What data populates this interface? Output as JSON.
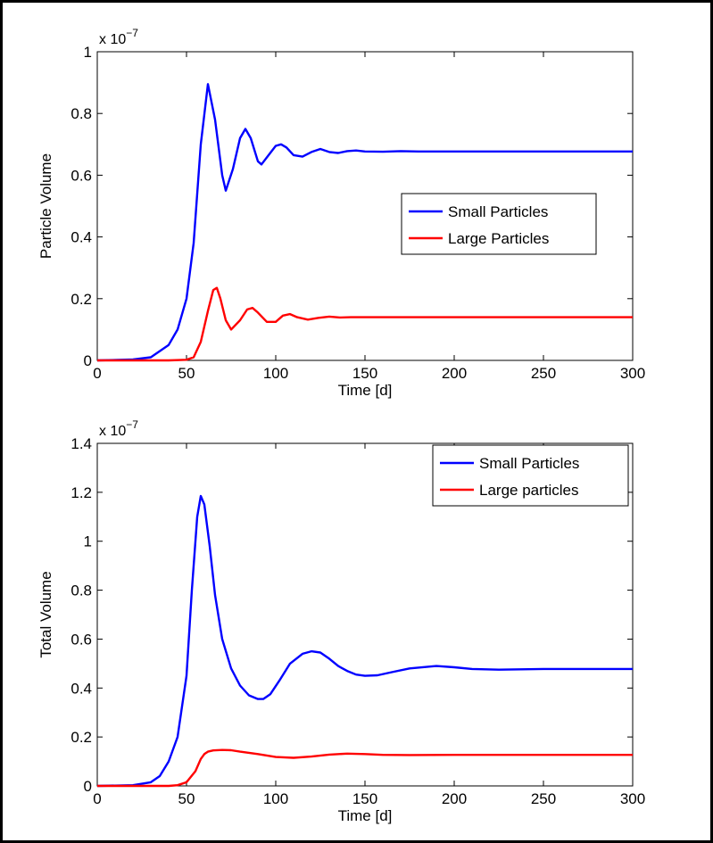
{
  "chart_data": [
    {
      "type": "line",
      "ylabel": "Particle Volume",
      "xlabel": "Time [d]",
      "exponent_base": "x 10",
      "exponent_power": "−7",
      "xlim": [
        0,
        300
      ],
      "ylim": [
        0,
        1
      ],
      "xticks": [
        0,
        50,
        100,
        150,
        200,
        250,
        300
      ],
      "xtick_labels": [
        "0",
        "50",
        "100",
        "150",
        "200",
        "250",
        "300"
      ],
      "yticks": [
        0,
        0.2,
        0.4,
        0.6,
        0.8,
        1
      ],
      "ytick_labels": [
        "0",
        "0.2",
        "0.4",
        "0.6",
        "0.8",
        "1"
      ],
      "grid": false,
      "legend_position": "right-middle",
      "series": [
        {
          "name": "Small Particles",
          "color": "#0000ff",
          "x": [
            0,
            20,
            30,
            40,
            45,
            50,
            54,
            58,
            62,
            66,
            70,
            72,
            76,
            80,
            83,
            86,
            90,
            92,
            96,
            100,
            103,
            106,
            110,
            115,
            120,
            125,
            130,
            135,
            140,
            145,
            150,
            160,
            170,
            180,
            200,
            250,
            300
          ],
          "y": [
            0,
            0.003,
            0.01,
            0.05,
            0.1,
            0.2,
            0.38,
            0.7,
            0.895,
            0.78,
            0.6,
            0.55,
            0.62,
            0.72,
            0.75,
            0.72,
            0.645,
            0.635,
            0.665,
            0.695,
            0.7,
            0.69,
            0.665,
            0.66,
            0.675,
            0.685,
            0.675,
            0.672,
            0.678,
            0.68,
            0.677,
            0.676,
            0.678,
            0.677,
            0.677,
            0.677,
            0.677
          ]
        },
        {
          "name": "Large Particles",
          "color": "#ff0000",
          "x": [
            0,
            40,
            50,
            54,
            58,
            62,
            65,
            67,
            69,
            72,
            75,
            80,
            84,
            87,
            90,
            95,
            100,
            104,
            108,
            112,
            118,
            124,
            130,
            136,
            142,
            150,
            160,
            200,
            250,
            300
          ],
          "y": [
            0,
            0,
            0.002,
            0.01,
            0.06,
            0.16,
            0.228,
            0.235,
            0.2,
            0.13,
            0.1,
            0.13,
            0.165,
            0.17,
            0.155,
            0.125,
            0.125,
            0.145,
            0.15,
            0.14,
            0.132,
            0.138,
            0.142,
            0.139,
            0.14,
            0.14,
            0.14,
            0.14,
            0.14,
            0.14
          ]
        }
      ]
    },
    {
      "type": "line",
      "ylabel": "Total Volume",
      "xlabel": "Time [d]",
      "exponent_base": "x 10",
      "exponent_power": "−7",
      "xlim": [
        0,
        300
      ],
      "ylim": [
        0,
        1.4
      ],
      "xticks": [
        0,
        50,
        100,
        150,
        200,
        250,
        300
      ],
      "xtick_labels": [
        "0",
        "50",
        "100",
        "150",
        "200",
        "250",
        "300"
      ],
      "yticks": [
        0,
        0.2,
        0.4,
        0.6,
        0.8,
        1,
        1.2,
        1.4
      ],
      "ytick_labels": [
        "0",
        "0.2",
        "0.4",
        "0.6",
        "0.8",
        "1",
        "1.2",
        "1.4"
      ],
      "grid": false,
      "legend_position": "top-right",
      "series": [
        {
          "name": "Small Particles",
          "color": "#0000ff",
          "x": [
            0,
            20,
            30,
            35,
            40,
            45,
            50,
            53,
            56,
            58,
            60,
            63,
            66,
            70,
            75,
            80,
            85,
            90,
            93,
            97,
            102,
            108,
            115,
            120,
            125,
            130,
            135,
            140,
            145,
            150,
            157,
            165,
            175,
            190,
            200,
            210,
            225,
            250,
            280,
            300
          ],
          "y": [
            0,
            0.003,
            0.015,
            0.04,
            0.1,
            0.2,
            0.45,
            0.8,
            1.1,
            1.185,
            1.15,
            0.98,
            0.78,
            0.6,
            0.48,
            0.41,
            0.37,
            0.355,
            0.355,
            0.375,
            0.43,
            0.5,
            0.54,
            0.55,
            0.545,
            0.52,
            0.49,
            0.47,
            0.455,
            0.45,
            0.452,
            0.465,
            0.48,
            0.49,
            0.485,
            0.478,
            0.475,
            0.478,
            0.478,
            0.478
          ]
        },
        {
          "name": "Large particles",
          "color": "#ff0000",
          "x": [
            0,
            40,
            45,
            50,
            55,
            58,
            60,
            62,
            65,
            70,
            75,
            80,
            90,
            100,
            110,
            120,
            130,
            140,
            150,
            160,
            175,
            200,
            250,
            300
          ],
          "y": [
            0,
            0,
            0.003,
            0.015,
            0.06,
            0.11,
            0.13,
            0.14,
            0.145,
            0.147,
            0.146,
            0.14,
            0.13,
            0.118,
            0.115,
            0.12,
            0.128,
            0.132,
            0.13,
            0.127,
            0.126,
            0.127,
            0.127,
            0.127
          ]
        }
      ]
    }
  ]
}
